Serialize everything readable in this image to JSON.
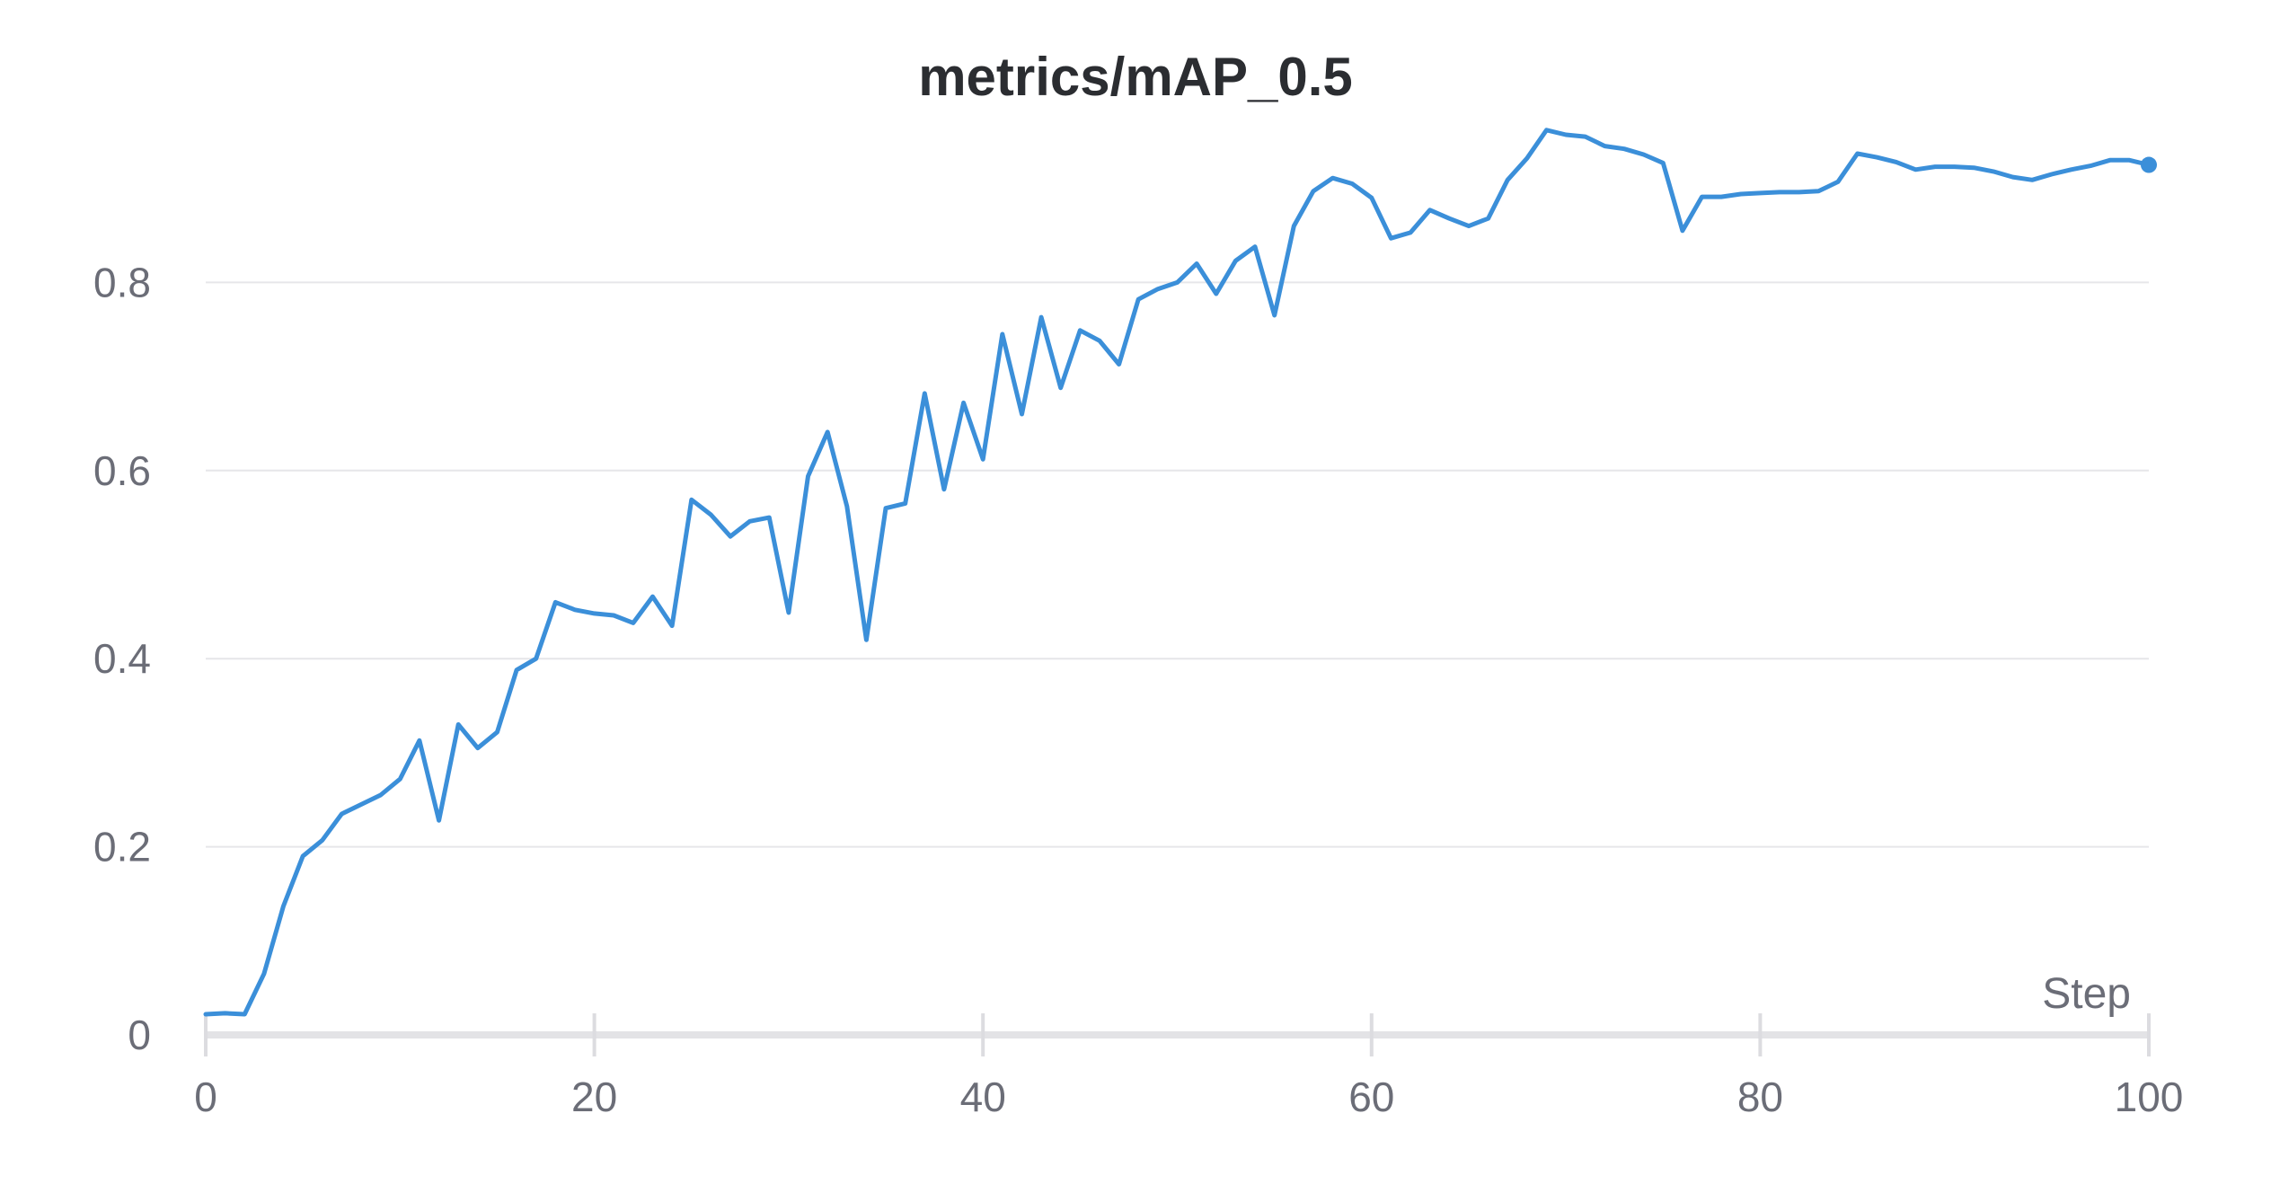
{
  "chart_data": {
    "type": "line",
    "title": "metrics/mAP_0.5",
    "xlabel": "Step",
    "ylabel": "",
    "xlim": [
      0,
      100
    ],
    "ylim": [
      0,
      1.0
    ],
    "xticks": [
      "0",
      "20",
      "40",
      "60",
      "80",
      "100"
    ],
    "yticks": [
      "0",
      "0.2",
      "0.4",
      "0.6",
      "0.8"
    ],
    "grid": true,
    "line_color": "#3b8fd9",
    "series": [
      {
        "x": [
          0,
          1,
          2,
          3,
          4,
          5,
          6,
          7,
          8,
          9,
          10,
          11,
          12,
          13,
          14,
          15,
          16,
          17,
          18,
          19,
          20,
          21,
          22,
          23,
          24,
          25,
          26,
          27,
          28,
          29,
          30,
          31,
          32,
          33,
          34,
          35,
          36,
          37,
          38,
          39,
          40,
          41,
          42,
          43,
          44,
          45,
          46,
          47,
          48,
          49,
          50,
          51,
          52,
          53,
          54,
          55,
          56,
          57,
          58,
          59,
          60,
          61,
          62,
          63,
          64,
          65,
          66,
          67,
          68,
          69,
          70,
          71,
          72,
          73,
          74,
          75,
          76,
          77,
          78,
          79,
          80,
          81,
          82,
          83,
          84,
          85,
          86,
          87,
          88,
          89,
          90,
          91,
          92,
          93,
          94,
          95,
          96,
          97,
          98,
          99,
          100
        ],
        "y": [
          0.022,
          0.023,
          0.022,
          0.065,
          0.137,
          0.19,
          0.207,
          0.235,
          0.245,
          0.255,
          0.272,
          0.313,
          0.228,
          0.33,
          0.305,
          0.322,
          0.388,
          0.4,
          0.46,
          0.452,
          0.448,
          0.446,
          0.438,
          0.466,
          0.435,
          0.569,
          0.553,
          0.53,
          0.546,
          0.55,
          0.449,
          0.594,
          0.641,
          0.562,
          0.42,
          0.56,
          0.565,
          0.682,
          0.58,
          0.672,
          0.612,
          0.745,
          0.66,
          0.763,
          0.688,
          0.749,
          0.738,
          0.713,
          0.782,
          0.793,
          0.8,
          0.82,
          0.788,
          0.823,
          0.838,
          0.765,
          0.86,
          0.897,
          0.911,
          0.905,
          0.89,
          0.847,
          0.853,
          0.877,
          0.868,
          0.86,
          0.868,
          0.909,
          0.932,
          0.962,
          0.957,
          0.955,
          0.945,
          0.942,
          0.936,
          0.927,
          0.855,
          0.891,
          0.891,
          0.894,
          0.895,
          0.896,
          0.896,
          0.897,
          0.907,
          0.937,
          0.933,
          0.928,
          0.92,
          0.923,
          0.923,
          0.922,
          0.918,
          0.912,
          0.909,
          0.915,
          0.92,
          0.924,
          0.93,
          0.93,
          0.925
        ]
      }
    ]
  }
}
